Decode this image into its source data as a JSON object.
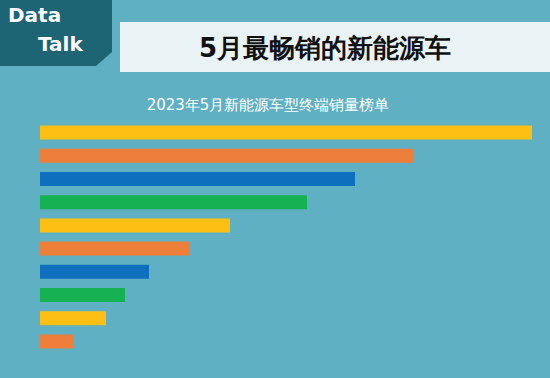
{
  "header": {
    "badge": [
      "Data",
      "Talk"
    ]
  },
  "chart_data": {
    "type": "bar",
    "orientation": "horizontal",
    "title": "5月最畅销的新能源车",
    "subtitle": "2023年5月新能源车型终端销量榜单",
    "categories": [
      null,
      null,
      null,
      null,
      null,
      null,
      null,
      null,
      null,
      null
    ],
    "values": [
      492,
      373,
      315,
      267,
      190,
      150,
      109,
      85,
      66,
      33
    ],
    "colors": [
      "#fdbf14",
      "#ed7f3a",
      "#0f6fbf",
      "#15b152",
      "#fdbf14",
      "#ed7f3a",
      "#0f6fbf",
      "#15b152",
      "#fdbf14",
      "#ed7f3a"
    ],
    "xlim": [
      0,
      492
    ],
    "grid": false,
    "tick_labels": false,
    "data_labels": false
  }
}
